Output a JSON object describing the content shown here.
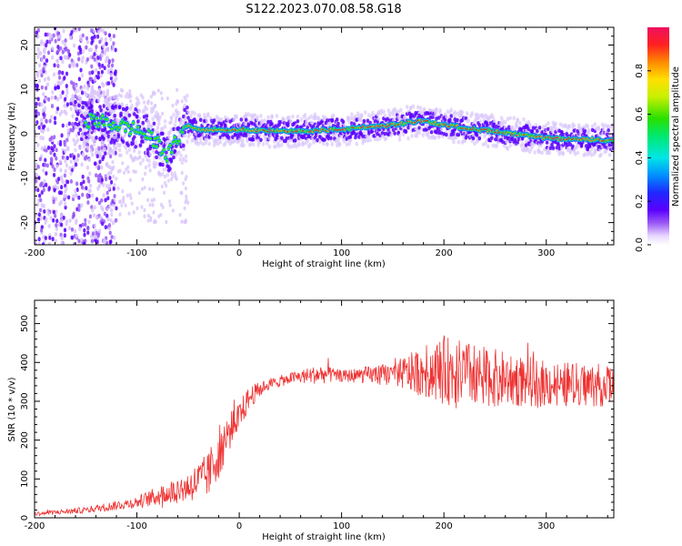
{
  "title": "S122.2023.070.08.58.G18",
  "chart_data": [
    {
      "type": "heatmap",
      "xlabel": "Height of straight line (km)",
      "ylabel": "Frequency (Hz)",
      "xlim": [
        -200,
        366
      ],
      "ylim": [
        -25,
        24
      ],
      "xticks": [
        -200,
        -100,
        0,
        100,
        200,
        300
      ],
      "yticks": [
        -20,
        -10,
        0,
        10,
        20
      ],
      "colorbar": {
        "label": "Normalized spectral amplitude",
        "range": [
          0,
          1
        ],
        "ticks": [
          "0.0",
          "0.2",
          "0.4",
          "0.6",
          "0.8"
        ]
      },
      "ridge": {
        "x": [
          -160,
          -140,
          -120,
          -100,
          -80,
          -70,
          -60,
          -50,
          -40,
          0,
          50,
          100,
          150,
          180,
          200,
          250,
          300,
          366
        ],
        "y": [
          3,
          3,
          2,
          1,
          -2,
          -5,
          -1,
          2,
          1,
          1,
          0.5,
          1,
          2,
          3,
          2,
          0.5,
          -1,
          -1.5
        ]
      }
    },
    {
      "type": "line",
      "xlabel": "Height of straight line (km)",
      "ylabel": "SNR (10 * v/v)",
      "xlim": [
        -200,
        366
      ],
      "ylim": [
        0,
        560
      ],
      "xticks": [
        -200,
        -100,
        0,
        100,
        200,
        300
      ],
      "yticks": [
        0,
        100,
        200,
        300,
        400,
        500
      ],
      "color": "#ef3333",
      "series_envelope": {
        "x": [
          -200,
          -150,
          -100,
          -50,
          -30,
          -20,
          -10,
          0,
          10,
          25,
          50,
          80,
          100,
          150,
          200,
          250,
          300,
          366
        ],
        "mean": [
          10,
          20,
          40,
          80,
          110,
          170,
          220,
          260,
          310,
          340,
          360,
          370,
          365,
          370,
          380,
          360,
          345,
          340
        ],
        "spread": [
          5,
          8,
          15,
          40,
          60,
          70,
          50,
          40,
          30,
          15,
          15,
          25,
          15,
          30,
          90,
          75,
          60,
          55
        ]
      }
    }
  ]
}
